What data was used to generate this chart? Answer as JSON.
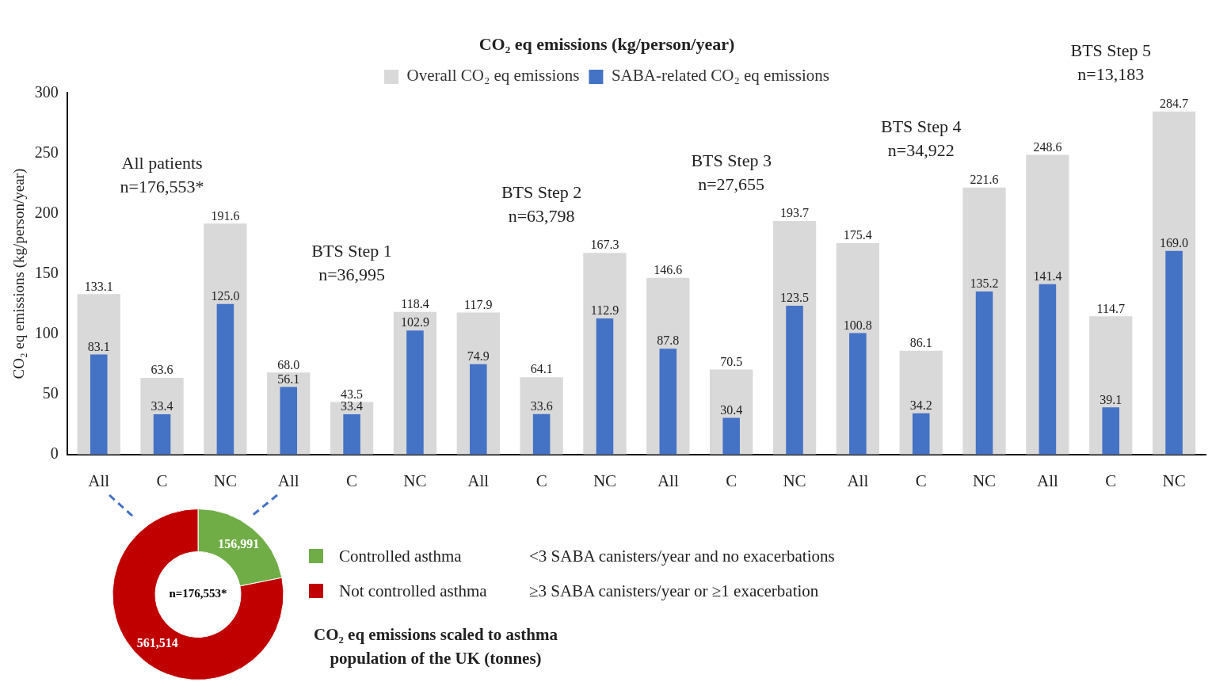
{
  "chart_data": [
    {
      "type": "bar",
      "title": "CO₂ eq emissions (kg/person/year)",
      "ylabel": "CO₂ eq emissions (kg/person/year)",
      "categories": [
        "All",
        "C",
        "NC",
        "All",
        "C",
        "NC",
        "All",
        "C",
        "NC",
        "All",
        "C",
        "NC",
        "All",
        "C",
        "NC",
        "All",
        "C",
        "NC"
      ],
      "series": [
        {
          "name": "Overall CO₂ eq emissions",
          "color": "#d9d9d9",
          "values": [
            133.1,
            63.6,
            191.6,
            68.0,
            43.5,
            118.4,
            117.9,
            64.1,
            167.3,
            146.6,
            70.5,
            193.7,
            175.4,
            86.1,
            221.6,
            248.6,
            114.7,
            284.7
          ],
          "value_labels": [
            "133.1",
            "63.6",
            "191.6",
            "68.0",
            "43.5",
            "118.4",
            "117.9",
            "64.1",
            "167.3",
            "146.6",
            "70.5",
            "193.7",
            "175.4",
            "86.1",
            "221.6",
            "248.6",
            "114.7",
            "284.7"
          ]
        },
        {
          "name": "SABA-related CO₂ eq emissions",
          "color": "#4472c4",
          "values": [
            83.1,
            33.4,
            125.0,
            56.1,
            33.4,
            102.9,
            74.9,
            33.6,
            112.9,
            87.8,
            30.4,
            123.5,
            100.8,
            34.2,
            135.2,
            141.4,
            39.1,
            169.0
          ],
          "value_labels": [
            "83.1",
            "33.4",
            "125.0",
            "56.1",
            "33.4",
            "102.9",
            "74.9",
            "33.6",
            "112.9",
            "87.8",
            "30.4",
            "123.5",
            "100.8",
            "34.2",
            "135.2",
            "141.4",
            "39.1",
            "169.0"
          ]
        }
      ],
      "ylim": [
        0,
        300
      ],
      "yticks": [
        0,
        50,
        100,
        150,
        200,
        250,
        300
      ],
      "grid": false,
      "legend": "top",
      "annotations": [
        "All patients n=176,553*",
        "BTS Step 1 n=36,995",
        "BTS Step 2 n=63,798",
        "BTS Step 3 n=27,655",
        "BTS Step 4 n=34,922",
        "BTS Step 5 n=13,183"
      ]
    },
    {
      "type": "donut",
      "title": "CO₂ eq emissions scaled to asthma population of the UK (tonnes)",
      "categories": [
        "Controlled asthma",
        "Not controlled asthma"
      ],
      "values": [
        156991,
        561514
      ],
      "value_labels": [
        "156,991",
        "561,514"
      ],
      "colors": [
        "#70ad47",
        "#c00000"
      ],
      "legend": "right",
      "annotations": [
        "<3 SABA canisters/year and no exacerbations",
        "≥3 SABA canisters/year or ≥1 exacerbation",
        "n=176,553*"
      ]
    }
  ]
}
